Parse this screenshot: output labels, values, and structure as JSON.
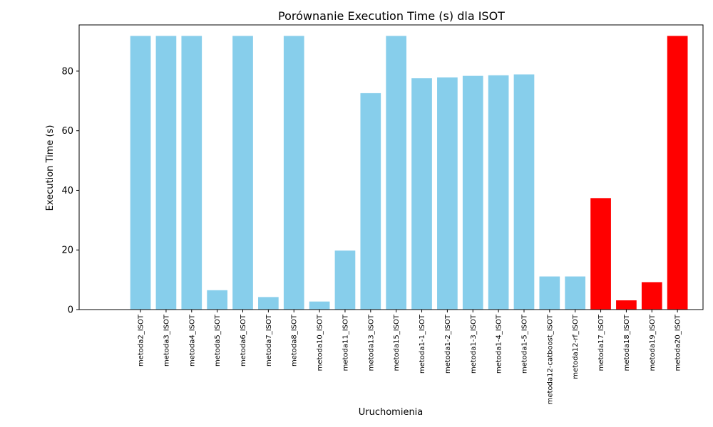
{
  "chart_data": {
    "type": "bar",
    "title": "Porównanie Execution Time (s) dla ISOT",
    "xlabel": "Uruchomienia",
    "ylabel": "Execution Time (s)",
    "ylim": [
      0,
      95.5
    ],
    "yticks": [
      0,
      20,
      40,
      60,
      80
    ],
    "grid": false,
    "categories": [
      "metoda2_ISOT",
      "metoda3_ISOT",
      "metoda4_ISOT",
      "metoda5_ISOT",
      "metoda6_ISOT",
      "metoda7_ISOT",
      "metoda8_ISOT",
      "metoda10_ISOT",
      "metoda11_ISOT",
      "metoda13_ISOT",
      "metoda15_ISOT",
      "metoda1-1_ISOT",
      "metoda1-2_ISOT",
      "metoda1-3_ISOT",
      "metoda1-4_ISOT",
      "metoda1-5_ISOT",
      "metoda12-catboost_ISOT",
      "metoda12-rf_ISOT",
      "metoda17_ISOT",
      "metoda18_ISOT",
      "metoda19_ISOT",
      "metoda20_ISOT"
    ],
    "values": [
      91.8,
      91.8,
      91.8,
      6.5,
      91.8,
      4.2,
      91.8,
      2.7,
      19.8,
      72.6,
      91.8,
      77.6,
      77.9,
      78.4,
      78.6,
      78.9,
      11.1,
      11.1,
      37.4,
      3.1,
      9.2,
      91.8
    ],
    "colors": [
      "#87CEEB",
      "#87CEEB",
      "#87CEEB",
      "#87CEEB",
      "#87CEEB",
      "#87CEEB",
      "#87CEEB",
      "#87CEEB",
      "#87CEEB",
      "#87CEEB",
      "#87CEEB",
      "#87CEEB",
      "#87CEEB",
      "#87CEEB",
      "#87CEEB",
      "#87CEEB",
      "#87CEEB",
      "#87CEEB",
      "#FF0000",
      "#FF0000",
      "#FF0000",
      "#FF0000"
    ]
  }
}
